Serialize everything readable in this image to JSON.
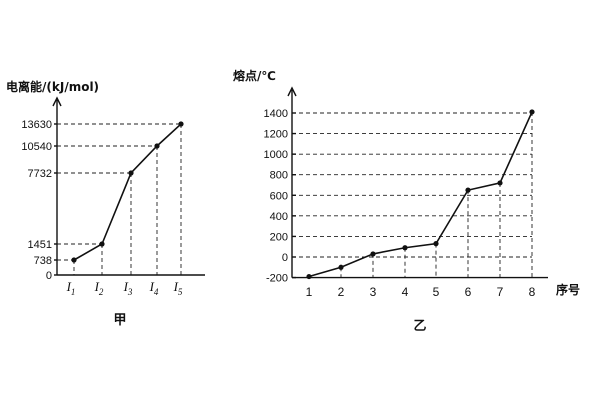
{
  "chart_data": [
    {
      "type": "line",
      "ylabel": "电离能/(kJ/mol)",
      "categories": [
        "I1",
        "I2",
        "I3",
        "I4",
        "I5"
      ],
      "category_labels": [
        {
          "main": "I",
          "sub": "1"
        },
        {
          "main": "I",
          "sub": "2"
        },
        {
          "main": "I",
          "sub": "3"
        },
        {
          "main": "I",
          "sub": "4"
        },
        {
          "main": "I",
          "sub": "5"
        }
      ],
      "values": [
        738,
        1451,
        7732,
        10540,
        13630
      ],
      "yticks": [
        "0",
        "738",
        "1451",
        "7732",
        "10540",
        "13630"
      ],
      "caption": "甲",
      "grid": "dashed guide lines to each point"
    },
    {
      "type": "line",
      "ylabel": "熔点/℃",
      "xlabel": "序号",
      "categories": [
        "1",
        "2",
        "3",
        "4",
        "5",
        "6",
        "7",
        "8"
      ],
      "values": [
        -190,
        -100,
        30,
        90,
        130,
        650,
        720,
        1410
      ],
      "yticks": [
        "-200",
        "0",
        "200",
        "400",
        "600",
        "800",
        "1000",
        "1200",
        "1400"
      ],
      "ylim": [
        -200,
        1400
      ],
      "caption": "乙",
      "grid": "dashed horizontal gridlines and vertical guides"
    }
  ]
}
